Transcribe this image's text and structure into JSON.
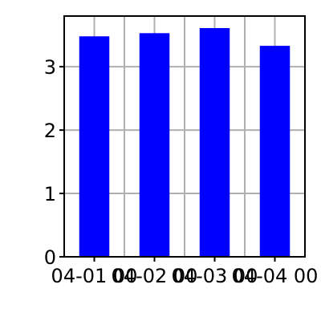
{
  "chart_data": {
    "type": "bar",
    "categories": [
      "04-01 00",
      "04-02 00",
      "04-03 00",
      "04-04 00"
    ],
    "values": [
      3.48,
      3.53,
      3.61,
      3.33
    ],
    "ylim": [
      0,
      3.8
    ],
    "yticks": [
      "0",
      "1",
      "2",
      "3"
    ],
    "grid": true,
    "colors": {
      "bar": "#0000ff",
      "grid": "#b0b0b0",
      "axes": "#000000"
    }
  }
}
